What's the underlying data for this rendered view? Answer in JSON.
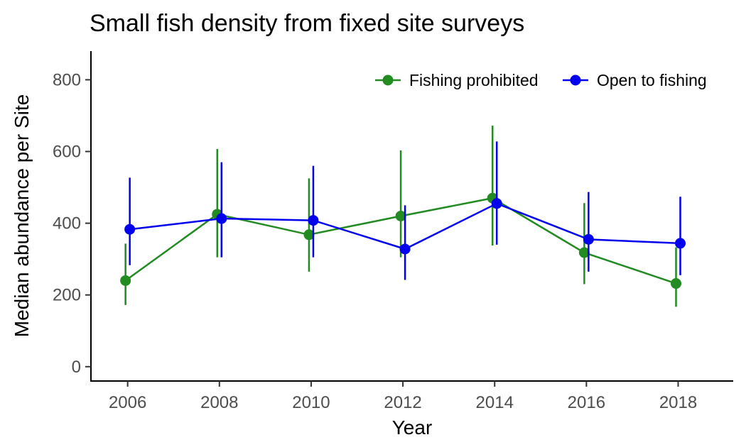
{
  "chart_data": {
    "type": "line",
    "title": "Small fish density from fixed site surveys",
    "xlabel": "Year",
    "ylabel": "Median abundance per Site",
    "x_ticks": [
      "2006",
      "2008",
      "2010",
      "2012",
      "2014",
      "2016",
      "2018"
    ],
    "y_ticks": [
      "0",
      "200",
      "400",
      "600",
      "800"
    ],
    "xlim": [
      2005.2,
      2019.2
    ],
    "ylim": [
      -40,
      880
    ],
    "legend_position": "top-right",
    "error_bars": true,
    "series": [
      {
        "name": "Fishing prohibited",
        "color": "#228B22",
        "x": [
          2006,
          2008,
          2010,
          2012,
          2014,
          2016,
          2018
        ],
        "values": [
          240,
          425,
          368,
          420,
          470,
          318,
          232
        ],
        "lower": [
          172,
          305,
          265,
          305,
          338,
          230,
          167
        ],
        "upper": [
          343,
          607,
          525,
          603,
          672,
          456,
          333
        ]
      },
      {
        "name": "Open to fishing",
        "color": "#0000EE",
        "x": [
          2006,
          2008,
          2010,
          2012,
          2014,
          2016,
          2018
        ],
        "values": [
          383,
          413,
          408,
          328,
          455,
          355,
          344
        ],
        "lower": [
          283,
          305,
          305,
          242,
          340,
          265,
          255
        ],
        "upper": [
          527,
          570,
          560,
          450,
          628,
          487,
          474
        ]
      }
    ]
  }
}
